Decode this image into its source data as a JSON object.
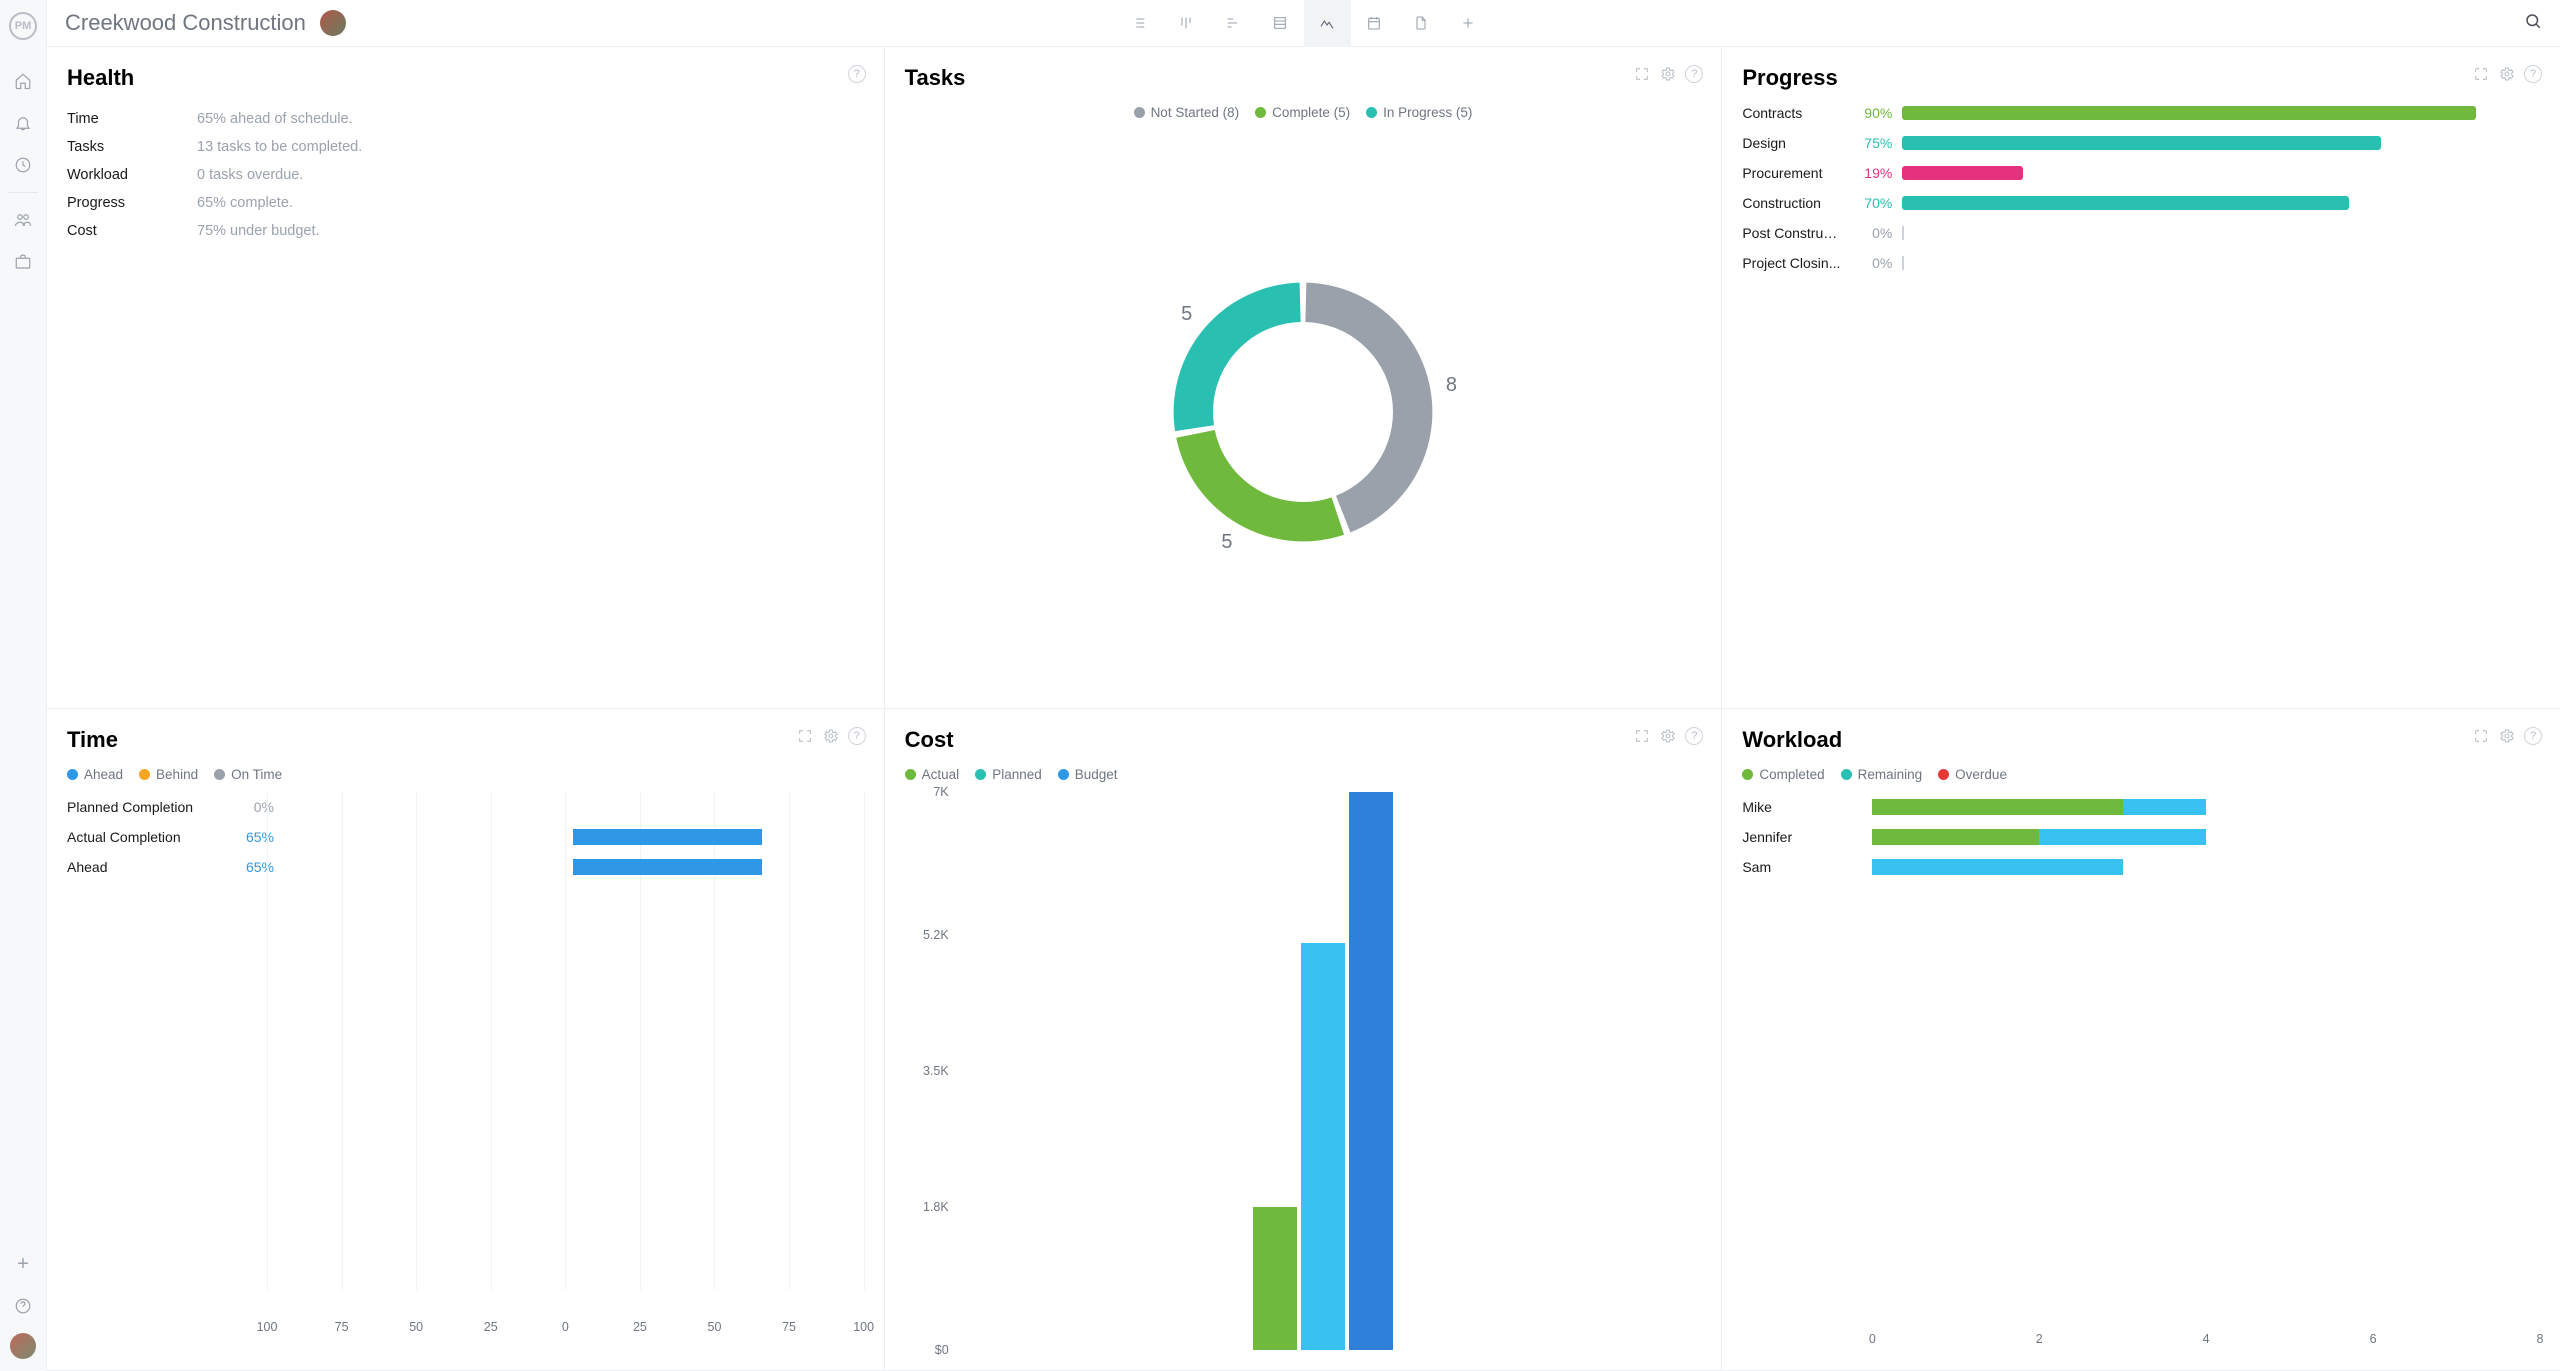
{
  "colors": {
    "green": "#6fba3c",
    "teal": "#29c0b1",
    "grey": "#9aa1ab",
    "blue": "#2f98e6",
    "skyblue": "#39c1f0",
    "magenta": "#e6317f",
    "orange": "#f5a623",
    "red": "#e53935",
    "text_muted": "#9aa2ad",
    "text_main": "#1a1a1a"
  },
  "project": {
    "title": "Creekwood Construction"
  },
  "health": {
    "title": "Health",
    "rows": [
      {
        "label": "Time",
        "value": "65% ahead of schedule."
      },
      {
        "label": "Tasks",
        "value": "13 tasks to be completed."
      },
      {
        "label": "Workload",
        "value": "0 tasks overdue."
      },
      {
        "label": "Progress",
        "value": "65% complete."
      },
      {
        "label": "Cost",
        "value": "75% under budget."
      }
    ]
  },
  "tasks": {
    "title": "Tasks",
    "legend": [
      {
        "label": "Not Started (8)",
        "color": "#9aa1ab"
      },
      {
        "label": "Complete (5)",
        "color": "#6fba3c"
      },
      {
        "label": "In Progress (5)",
        "color": "#29c0b1"
      }
    ],
    "donut": {
      "inner_radius": 80,
      "outer_radius": 115,
      "segments": [
        {
          "value": 8,
          "color": "#9aa1ab",
          "label": "8"
        },
        {
          "value": 5,
          "color": "#6fba3c",
          "label": "5"
        },
        {
          "value": 5,
          "color": "#29c0b1",
          "label": "5"
        }
      ]
    }
  },
  "progress": {
    "title": "Progress",
    "rows": [
      {
        "name": "Contracts",
        "pct": 90,
        "pct_label": "90%",
        "color": "#6fba3c",
        "pct_color": "#6fba3c"
      },
      {
        "name": "Design",
        "pct": 75,
        "pct_label": "75%",
        "color": "#29c0b1",
        "pct_color": "#29c0b1"
      },
      {
        "name": "Procurement",
        "pct": 19,
        "pct_label": "19%",
        "color": "#e6317f",
        "pct_color": "#e6317f"
      },
      {
        "name": "Construction",
        "pct": 70,
        "pct_label": "70%",
        "color": "#29c0b1",
        "pct_color": "#29c0b1"
      },
      {
        "name": "Post Construct...",
        "pct": 0,
        "pct_label": "0%",
        "color": "#cfd4da",
        "pct_color": "#9aa2ad"
      },
      {
        "name": "Project Closin...",
        "pct": 0,
        "pct_label": "0%",
        "color": "#cfd4da",
        "pct_color": "#9aa2ad"
      }
    ]
  },
  "time": {
    "title": "Time",
    "legend": [
      {
        "label": "Ahead",
        "color": "#2f98e6"
      },
      {
        "label": "Behind",
        "color": "#f5a623"
      },
      {
        "label": "On Time",
        "color": "#9aa1ab"
      }
    ],
    "axis": {
      "min": -100,
      "max": 100,
      "ticks": [
        -100,
        -75,
        -50,
        -25,
        0,
        25,
        50,
        75,
        100
      ],
      "tick_labels": [
        "100",
        "75",
        "50",
        "25",
        "0",
        "25",
        "50",
        "75",
        "100"
      ]
    },
    "rows": [
      {
        "name": "Planned Completion",
        "pct_label": "0%",
        "value": 0,
        "color": "#2f98e6",
        "pct_color": "#9aa2ad"
      },
      {
        "name": "Actual Completion",
        "pct_label": "65%",
        "value": 65,
        "color": "#2f98e6",
        "pct_color": "#2f98e6"
      },
      {
        "name": "Ahead",
        "pct_label": "65%",
        "value": 65,
        "color": "#2f98e6",
        "pct_color": "#2f98e6"
      }
    ]
  },
  "cost": {
    "title": "Cost",
    "legend": [
      {
        "label": "Actual",
        "color": "#6fba3c"
      },
      {
        "label": "Planned",
        "color": "#29c0b1"
      },
      {
        "label": "Budget",
        "color": "#2f98e6"
      }
    ],
    "ymax": 7000,
    "yticks": [
      {
        "v": 7000,
        "label": "7K"
      },
      {
        "v": 5200,
        "label": "5.2K"
      },
      {
        "v": 3500,
        "label": "3.5K"
      },
      {
        "v": 1800,
        "label": "1.8K"
      },
      {
        "v": 0,
        "label": "$0"
      }
    ],
    "bars": [
      {
        "value": 1800,
        "color": "#6fba3c"
      },
      {
        "value": 5100,
        "color": "#39c1f0"
      },
      {
        "value": 7000,
        "color": "#2f80d8"
      }
    ]
  },
  "workload": {
    "title": "Workload",
    "legend": [
      {
        "label": "Completed",
        "color": "#6fba3c"
      },
      {
        "label": "Remaining",
        "color": "#29c0b1"
      },
      {
        "label": "Overdue",
        "color": "#e53935"
      }
    ],
    "xmax": 8,
    "xticks": [
      0,
      2,
      4,
      6,
      8
    ],
    "rows": [
      {
        "name": "Mike",
        "segments": [
          {
            "v": 3.0,
            "color": "#6fba3c"
          },
          {
            "v": 1.0,
            "color": "#39c1f0"
          }
        ]
      },
      {
        "name": "Jennifer",
        "segments": [
          {
            "v": 2.0,
            "color": "#6fba3c"
          },
          {
            "v": 2.0,
            "color": "#39c1f0"
          }
        ]
      },
      {
        "name": "Sam",
        "segments": [
          {
            "v": 3.0,
            "color": "#39c1f0"
          }
        ]
      }
    ]
  },
  "labels": {
    "logo": "PM"
  }
}
